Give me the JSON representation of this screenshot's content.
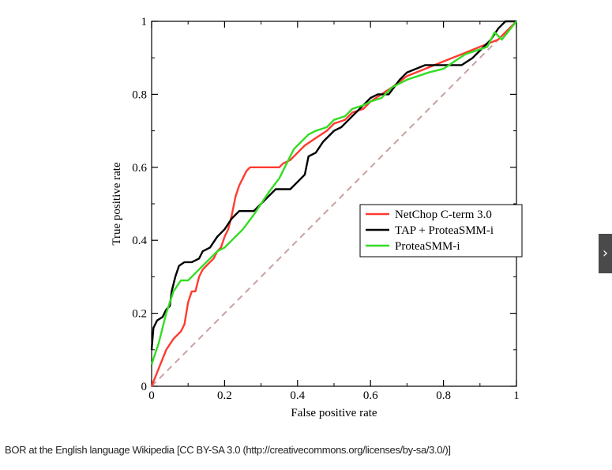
{
  "chart_data": {
    "type": "line",
    "title": "",
    "xlabel": "False positive rate",
    "ylabel": "True positive rate",
    "xlim": [
      0,
      1
    ],
    "ylim": [
      0,
      1
    ],
    "x_ticks": [
      0,
      0.2,
      0.4,
      0.6,
      0.8,
      1
    ],
    "y_ticks": [
      0,
      0.2,
      0.4,
      0.6,
      0.8,
      1
    ],
    "x_tick_labels": [
      "0",
      "0.2",
      "0.4",
      "0.6",
      "0.8",
      "1"
    ],
    "y_tick_labels": [
      "0",
      "0.2",
      "0.4",
      "0.6",
      "0.8",
      "1"
    ],
    "grid": false,
    "legend_position": "middle-right",
    "diagonal": {
      "from": [
        0,
        0
      ],
      "to": [
        1,
        1
      ],
      "style": "dashed",
      "color": "#c8a0a0"
    },
    "series": [
      {
        "name": "NetChop C-term 3.0",
        "color": "#ff3b30",
        "points": [
          [
            0,
            0
          ],
          [
            0.02,
            0.05
          ],
          [
            0.04,
            0.1
          ],
          [
            0.06,
            0.13
          ],
          [
            0.08,
            0.15
          ],
          [
            0.09,
            0.17
          ],
          [
            0.1,
            0.23
          ],
          [
            0.11,
            0.26
          ],
          [
            0.12,
            0.26
          ],
          [
            0.13,
            0.3
          ],
          [
            0.14,
            0.32
          ],
          [
            0.15,
            0.33
          ],
          [
            0.16,
            0.34
          ],
          [
            0.17,
            0.35
          ],
          [
            0.18,
            0.37
          ],
          [
            0.19,
            0.38
          ],
          [
            0.2,
            0.41
          ],
          [
            0.21,
            0.43
          ],
          [
            0.22,
            0.47
          ],
          [
            0.23,
            0.52
          ],
          [
            0.24,
            0.55
          ],
          [
            0.25,
            0.57
          ],
          [
            0.26,
            0.59
          ],
          [
            0.27,
            0.6
          ],
          [
            0.3,
            0.6
          ],
          [
            0.33,
            0.6
          ],
          [
            0.35,
            0.6
          ],
          [
            0.36,
            0.61
          ],
          [
            0.38,
            0.62
          ],
          [
            0.4,
            0.64
          ],
          [
            0.42,
            0.66
          ],
          [
            0.45,
            0.68
          ],
          [
            0.48,
            0.7
          ],
          [
            0.5,
            0.72
          ],
          [
            0.53,
            0.73
          ],
          [
            0.55,
            0.75
          ],
          [
            0.58,
            0.76
          ],
          [
            0.6,
            0.78
          ],
          [
            0.63,
            0.8
          ],
          [
            0.66,
            0.82
          ],
          [
            0.7,
            0.85
          ],
          [
            0.75,
            0.87
          ],
          [
            0.8,
            0.89
          ],
          [
            0.85,
            0.91
          ],
          [
            0.9,
            0.93
          ],
          [
            0.95,
            0.95
          ],
          [
            1,
            1
          ]
        ]
      },
      {
        "name": "TAP + ProteaSMM-i",
        "color": "#000000",
        "points": [
          [
            0,
            0.1
          ],
          [
            0.005,
            0.16
          ],
          [
            0.015,
            0.18
          ],
          [
            0.03,
            0.19
          ],
          [
            0.04,
            0.21
          ],
          [
            0.05,
            0.22
          ],
          [
            0.055,
            0.26
          ],
          [
            0.065,
            0.3
          ],
          [
            0.075,
            0.33
          ],
          [
            0.09,
            0.34
          ],
          [
            0.11,
            0.34
          ],
          [
            0.13,
            0.35
          ],
          [
            0.14,
            0.37
          ],
          [
            0.16,
            0.38
          ],
          [
            0.18,
            0.41
          ],
          [
            0.2,
            0.43
          ],
          [
            0.22,
            0.46
          ],
          [
            0.24,
            0.48
          ],
          [
            0.28,
            0.48
          ],
          [
            0.3,
            0.5
          ],
          [
            0.32,
            0.52
          ],
          [
            0.34,
            0.54
          ],
          [
            0.38,
            0.54
          ],
          [
            0.4,
            0.56
          ],
          [
            0.42,
            0.58
          ],
          [
            0.43,
            0.63
          ],
          [
            0.45,
            0.64
          ],
          [
            0.47,
            0.67
          ],
          [
            0.5,
            0.7
          ],
          [
            0.52,
            0.71
          ],
          [
            0.54,
            0.73
          ],
          [
            0.56,
            0.75
          ],
          [
            0.58,
            0.77
          ],
          [
            0.6,
            0.79
          ],
          [
            0.62,
            0.8
          ],
          [
            0.65,
            0.8
          ],
          [
            0.68,
            0.84
          ],
          [
            0.7,
            0.86
          ],
          [
            0.75,
            0.88
          ],
          [
            0.8,
            0.88
          ],
          [
            0.85,
            0.88
          ],
          [
            0.88,
            0.9
          ],
          [
            0.9,
            0.92
          ],
          [
            0.93,
            0.95
          ],
          [
            0.95,
            0.98
          ],
          [
            0.97,
            1
          ],
          [
            1,
            1
          ]
        ]
      },
      {
        "name": "ProteaSMM-i",
        "color": "#33dd22",
        "points": [
          [
            0,
            0.06
          ],
          [
            0.02,
            0.12
          ],
          [
            0.04,
            0.2
          ],
          [
            0.06,
            0.26
          ],
          [
            0.08,
            0.29
          ],
          [
            0.1,
            0.29
          ],
          [
            0.12,
            0.31
          ],
          [
            0.14,
            0.33
          ],
          [
            0.16,
            0.35
          ],
          [
            0.18,
            0.37
          ],
          [
            0.2,
            0.38
          ],
          [
            0.22,
            0.4
          ],
          [
            0.25,
            0.43
          ],
          [
            0.28,
            0.47
          ],
          [
            0.3,
            0.5
          ],
          [
            0.32,
            0.53
          ],
          [
            0.35,
            0.57
          ],
          [
            0.37,
            0.61
          ],
          [
            0.39,
            0.65
          ],
          [
            0.41,
            0.67
          ],
          [
            0.43,
            0.69
          ],
          [
            0.45,
            0.7
          ],
          [
            0.48,
            0.71
          ],
          [
            0.5,
            0.73
          ],
          [
            0.53,
            0.74
          ],
          [
            0.55,
            0.76
          ],
          [
            0.58,
            0.77
          ],
          [
            0.6,
            0.78
          ],
          [
            0.63,
            0.79
          ],
          [
            0.66,
            0.82
          ],
          [
            0.7,
            0.84
          ],
          [
            0.73,
            0.85
          ],
          [
            0.76,
            0.86
          ],
          [
            0.8,
            0.87
          ],
          [
            0.83,
            0.89
          ],
          [
            0.86,
            0.91
          ],
          [
            0.89,
            0.92
          ],
          [
            0.92,
            0.93
          ],
          [
            0.94,
            0.97
          ],
          [
            0.96,
            0.95
          ],
          [
            1,
            1
          ]
        ]
      }
    ]
  },
  "caption": "BOR at the English language Wikipedia [CC BY-SA 3.0 (http://creativecommons.org/licenses/by-sa/3.0/)]",
  "next_button": {
    "label": "›"
  }
}
